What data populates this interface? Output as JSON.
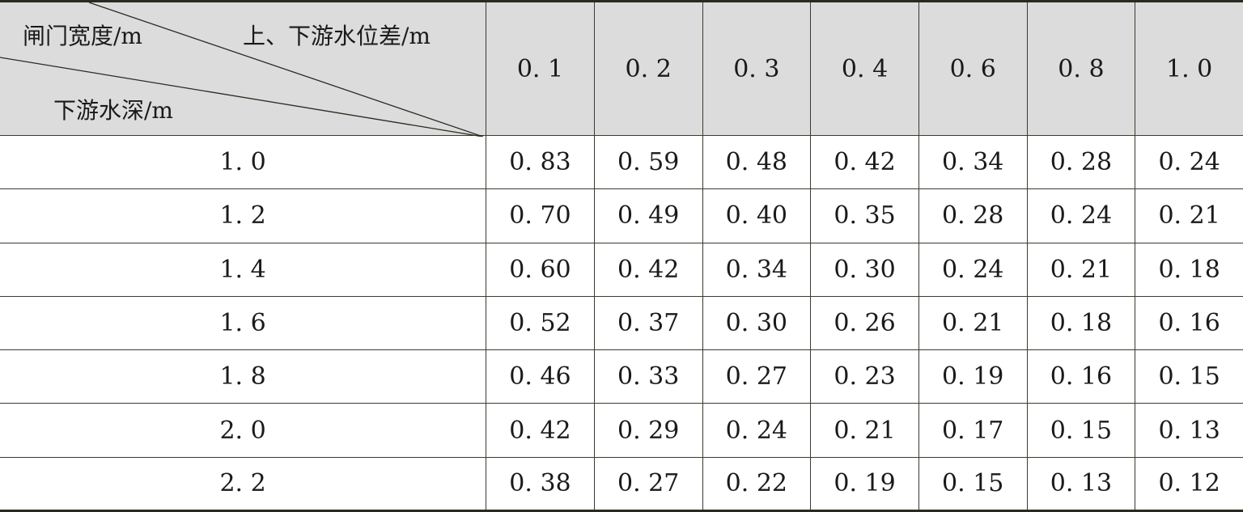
{
  "table": {
    "header": {
      "gate_width": "闸门宽度/m",
      "level_diff": "上、下游水位差/m",
      "downstream_depth": "下游水深/m",
      "columns": [
        "0. 1",
        "0. 2",
        "0. 3",
        "0. 4",
        "0. 6",
        "0. 8",
        "1. 0"
      ]
    },
    "rows": [
      {
        "depth": "1. 0",
        "values": [
          "0. 83",
          "0. 59",
          "0. 48",
          "0. 42",
          "0. 34",
          "0. 28",
          "0. 24"
        ]
      },
      {
        "depth": "1. 2",
        "values": [
          "0. 70",
          "0. 49",
          "0. 40",
          "0. 35",
          "0. 28",
          "0. 24",
          "0. 21"
        ]
      },
      {
        "depth": "1. 4",
        "values": [
          "0. 60",
          "0. 42",
          "0. 34",
          "0. 30",
          "0. 24",
          "0. 21",
          "0. 18"
        ]
      },
      {
        "depth": "1. 6",
        "values": [
          "0. 52",
          "0. 37",
          "0. 30",
          "0. 26",
          "0. 21",
          "0. 18",
          "0. 16"
        ]
      },
      {
        "depth": "1. 8",
        "values": [
          "0. 46",
          "0. 33",
          "0. 27",
          "0. 23",
          "0. 19",
          "0. 16",
          "0. 15"
        ]
      },
      {
        "depth": "2. 0",
        "values": [
          "0. 42",
          "0. 29",
          "0. 24",
          "0. 21",
          "0. 17",
          "0. 15",
          "0. 13"
        ]
      },
      {
        "depth": "2. 2",
        "values": [
          "0. 38",
          "0. 27",
          "0. 22",
          "0. 19",
          "0. 15",
          "0. 13",
          "0. 12"
        ]
      }
    ]
  }
}
